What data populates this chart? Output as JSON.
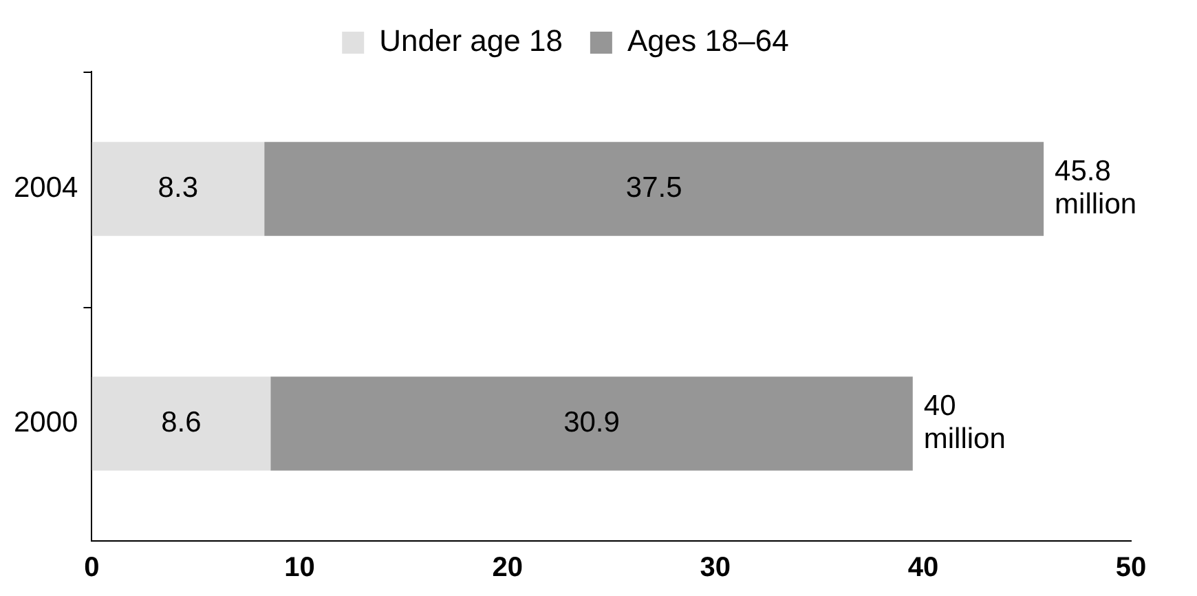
{
  "chart_data": {
    "type": "bar",
    "orientation": "horizontal",
    "stacked": true,
    "categories": [
      "2004",
      "2000"
    ],
    "series": [
      {
        "name": "Under age 18",
        "color": "#e0e0e0",
        "values": [
          8.3,
          8.6
        ]
      },
      {
        "name": "Ages 18–64",
        "color": "#969696",
        "values": [
          37.5,
          30.9
        ]
      }
    ],
    "totals": [
      "45.8 million",
      "40 million"
    ],
    "xlim": [
      0,
      50
    ],
    "xticks": [
      0,
      10,
      20,
      30,
      40,
      50
    ],
    "data_labels": true,
    "grid": false,
    "legend": "top"
  }
}
